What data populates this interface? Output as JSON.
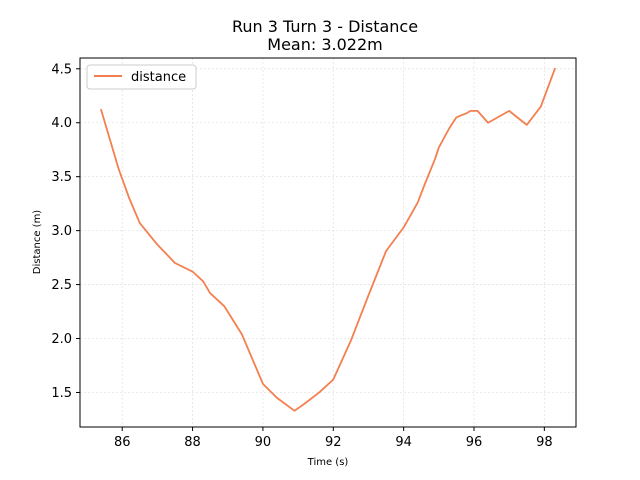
{
  "chart_data": {
    "type": "line",
    "title": "Run 3 Turn 3 - Distance",
    "subtitle": "Mean: 3.022m",
    "xlabel": "Time (s)",
    "ylabel": "Distance (m)",
    "xlim": [
      84.8,
      98.9
    ],
    "ylim": [
      1.18,
      4.6
    ],
    "xticks": [
      86,
      88,
      90,
      92,
      94,
      96,
      98
    ],
    "yticks": [
      1.5,
      2.0,
      2.5,
      3.0,
      3.5,
      4.0,
      4.5
    ],
    "xtick_labels": [
      "86",
      "88",
      "90",
      "92",
      "94",
      "96",
      "98"
    ],
    "ytick_labels": [
      "1.5",
      "2.0",
      "2.5",
      "3.0",
      "3.5",
      "4.0",
      "4.5"
    ],
    "grid": true,
    "legend_position": "top-left",
    "series": [
      {
        "name": "distance",
        "color": "#f47f4f",
        "x": [
          85.4,
          85.9,
          86.2,
          86.5,
          87.0,
          87.5,
          88.0,
          88.3,
          88.5,
          88.9,
          89.4,
          90.0,
          90.4,
          90.9,
          91.2,
          91.6,
          92.0,
          92.5,
          93.0,
          93.5,
          94.0,
          94.4,
          94.6,
          94.9,
          95.0,
          95.3,
          95.5,
          95.8,
          95.9,
          96.1,
          96.4,
          97.0,
          97.5,
          97.9,
          98.3
        ],
        "y": [
          4.12,
          3.57,
          3.3,
          3.07,
          2.87,
          2.7,
          2.62,
          2.53,
          2.42,
          2.3,
          2.04,
          1.58,
          1.45,
          1.33,
          1.4,
          1.5,
          1.62,
          1.98,
          2.4,
          2.81,
          3.03,
          3.26,
          3.43,
          3.67,
          3.77,
          3.95,
          4.05,
          4.09,
          4.11,
          4.11,
          4.0,
          4.11,
          3.98,
          4.15,
          4.5
        ]
      }
    ]
  }
}
